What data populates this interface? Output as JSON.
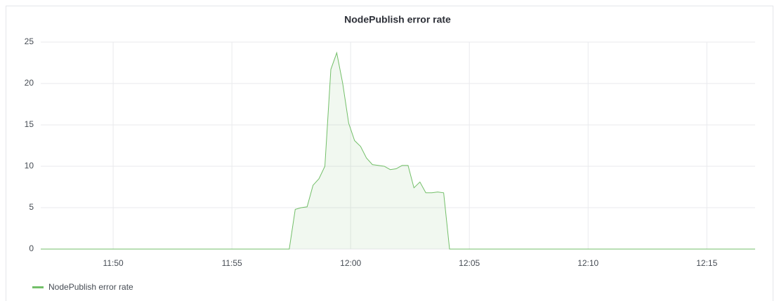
{
  "chart_data": {
    "type": "line",
    "title": "NodePublish error rate",
    "x": [
      "11:46:57",
      "11:57:25",
      "11:57:40",
      "11:57:55",
      "11:58:10",
      "11:58:25",
      "11:58:40",
      "11:58:55",
      "11:59:10",
      "11:59:25",
      "11:59:40",
      "11:59:55",
      "12:00:10",
      "12:00:25",
      "12:00:40",
      "12:00:55",
      "12:01:10",
      "12:01:25",
      "12:01:40",
      "12:01:55",
      "12:02:10",
      "12:02:25",
      "12:02:40",
      "12:02:55",
      "12:03:10",
      "12:03:25",
      "12:03:40",
      "12:03:55",
      "12:04:10",
      "12:17:02"
    ],
    "series": [
      {
        "name": "NodePublish error rate",
        "color": "#73bf69",
        "values": [
          0,
          0,
          4.8,
          5.0,
          5.1,
          7.7,
          8.5,
          10.0,
          21.7,
          23.7,
          20.0,
          15.2,
          13.1,
          12.4,
          11.0,
          10.2,
          10.1,
          10.0,
          9.6,
          9.7,
          10.1,
          10.1,
          7.4,
          8.1,
          6.8,
          6.8,
          6.9,
          6.8,
          0,
          0
        ]
      }
    ],
    "xlim": [
      "11:46:57",
      "12:17:02"
    ],
    "xticks": [
      "11:50",
      "11:55",
      "12:00",
      "12:05",
      "12:10",
      "12:15"
    ],
    "ylim": [
      0,
      25
    ],
    "yticks": [
      0,
      5,
      10,
      15,
      20,
      25
    ],
    "grid": true,
    "fill": true
  }
}
